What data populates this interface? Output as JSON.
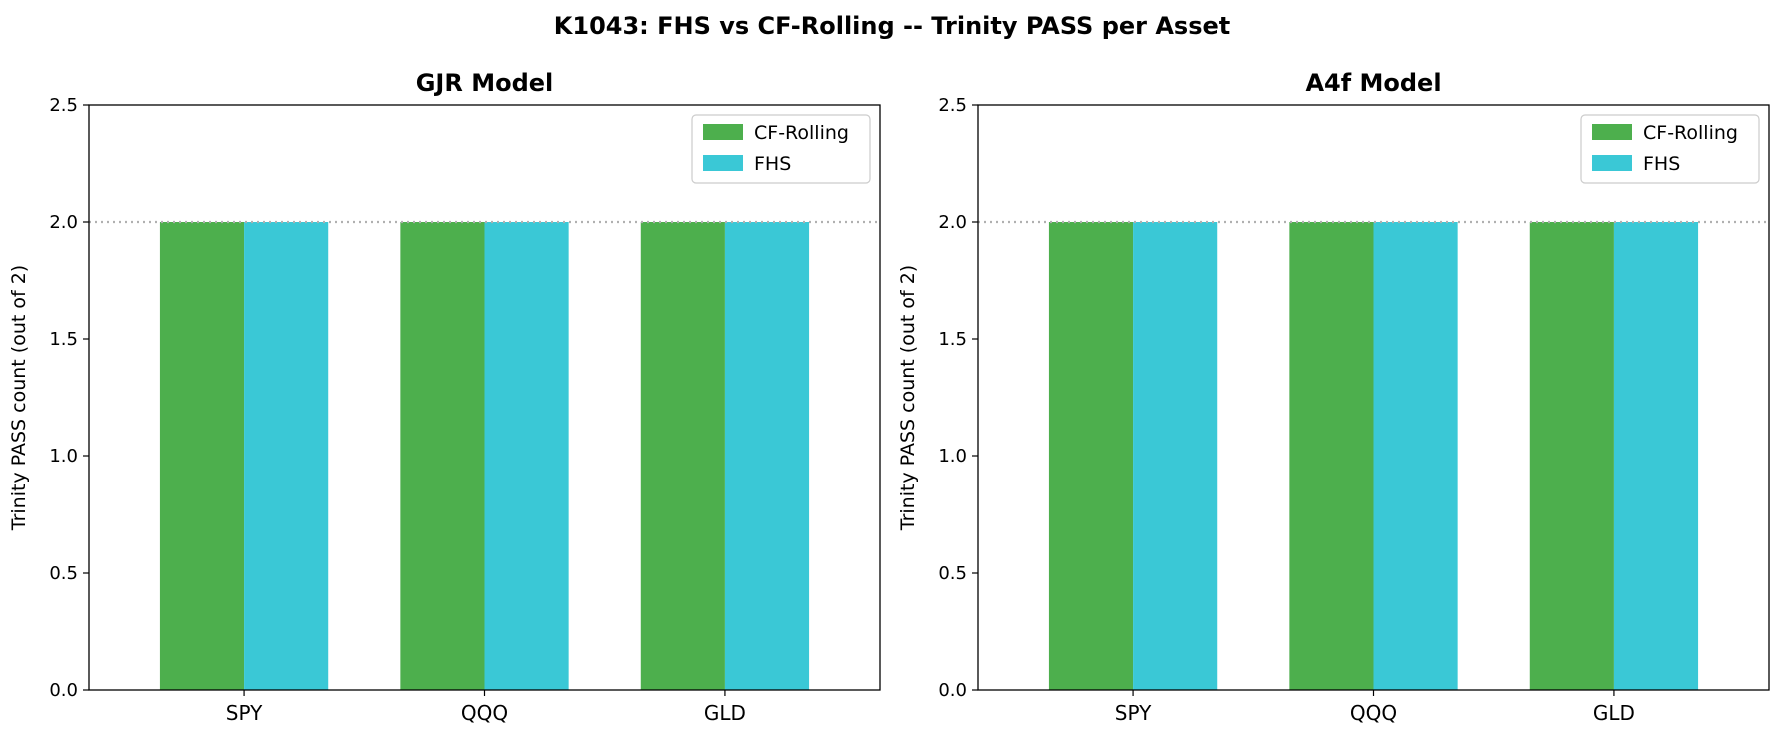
{
  "title": "K1043: FHS vs CF-Rolling -- Trinity PASS per Asset",
  "colors": {
    "CF-Rolling": "#4daf4d",
    "FHS": "#3ac8d6",
    "refline": "#b0b0b0"
  },
  "chart_data": [
    {
      "type": "bar",
      "title": "GJR Model",
      "xlabel": "",
      "ylabel": "Trinity PASS count (out of 2)",
      "categories": [
        "SPY",
        "QQQ",
        "GLD"
      ],
      "series": [
        {
          "name": "CF-Rolling",
          "values": [
            2,
            2,
            2
          ]
        },
        {
          "name": "FHS",
          "values": [
            2,
            2,
            2
          ]
        }
      ],
      "ylim": [
        0,
        2.5
      ],
      "yticks": [
        "0.0",
        "0.5",
        "1.0",
        "1.5",
        "2.0",
        "2.5"
      ],
      "reference_line": 2.0,
      "legend": "top-right",
      "grid": false
    },
    {
      "type": "bar",
      "title": "A4f Model",
      "xlabel": "",
      "ylabel": "Trinity PASS count (out of 2)",
      "categories": [
        "SPY",
        "QQQ",
        "GLD"
      ],
      "series": [
        {
          "name": "CF-Rolling",
          "values": [
            2,
            2,
            2
          ]
        },
        {
          "name": "FHS",
          "values": [
            2,
            2,
            2
          ]
        }
      ],
      "ylim": [
        0,
        2.5
      ],
      "yticks": [
        "0.0",
        "0.5",
        "1.0",
        "1.5",
        "2.0",
        "2.5"
      ],
      "reference_line": 2.0,
      "legend": "top-right",
      "grid": false
    }
  ]
}
